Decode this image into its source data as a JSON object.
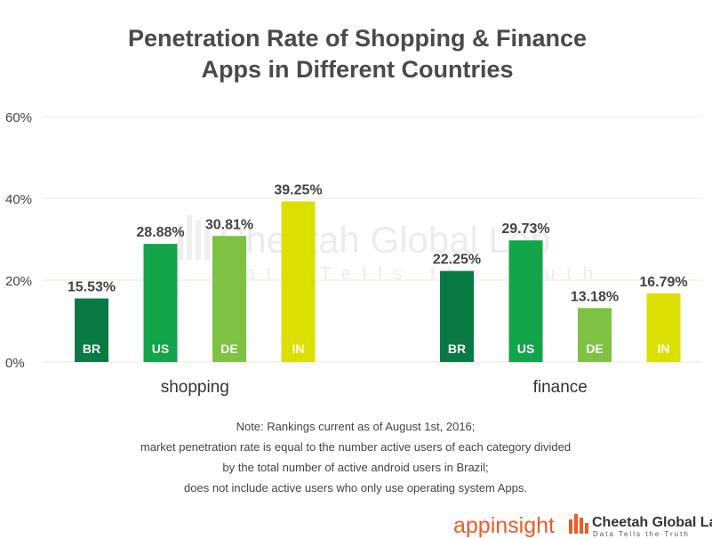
{
  "chart_data": {
    "type": "bar",
    "title_line1": "Penetration Rate of Shopping & Finance",
    "title_line2": "Apps in Different Countries",
    "groups": [
      {
        "name": "shopping",
        "bars": [
          {
            "code": "BR",
            "value": 15.53,
            "label": "15.53%",
            "color": "#0a7a45"
          },
          {
            "code": "US",
            "value": 28.88,
            "label": "28.88%",
            "color": "#13a54a"
          },
          {
            "code": "DE",
            "value": 30.81,
            "label": "30.81%",
            "color": "#7dc242"
          },
          {
            "code": "IN",
            "value": 39.25,
            "label": "39.25%",
            "color": "#dbe000"
          }
        ]
      },
      {
        "name": "finance",
        "bars": [
          {
            "code": "BR",
            "value": 22.25,
            "label": "22.25%",
            "color": "#0a7a45"
          },
          {
            "code": "US",
            "value": 29.73,
            "label": "29.73%",
            "color": "#13a54a"
          },
          {
            "code": "DE",
            "value": 13.18,
            "label": "13.18%",
            "color": "#7dc242"
          },
          {
            "code": "IN",
            "value": 16.79,
            "label": "16.79%",
            "color": "#dbe000"
          }
        ]
      }
    ],
    "yticks": [
      {
        "value": 0,
        "label": "0%"
      },
      {
        "value": 20,
        "label": "20%"
      },
      {
        "value": 40,
        "label": "40%"
      },
      {
        "value": 60,
        "label": "60%"
      }
    ],
    "ylim": [
      0,
      60
    ],
    "grid": true
  },
  "watermark": {
    "line1": "Cheetah Global Lab",
    "line2": "Data Tells the Truth"
  },
  "notes": [
    "Note: Rankings current as of August 1st, 2016;",
    "market penetration rate is equal to the number active users of each category divided",
    "by the total number of active android users in Brazil;",
    "does not include active users who only use operating system Apps."
  ],
  "logos": {
    "appinsight": "appinsight",
    "cheetah": "Cheetah Global Lab",
    "cheetah_tagline": "Data Tells the Truth",
    "appinsight_color": "#f05a28",
    "cheetah_color": "#333333"
  }
}
